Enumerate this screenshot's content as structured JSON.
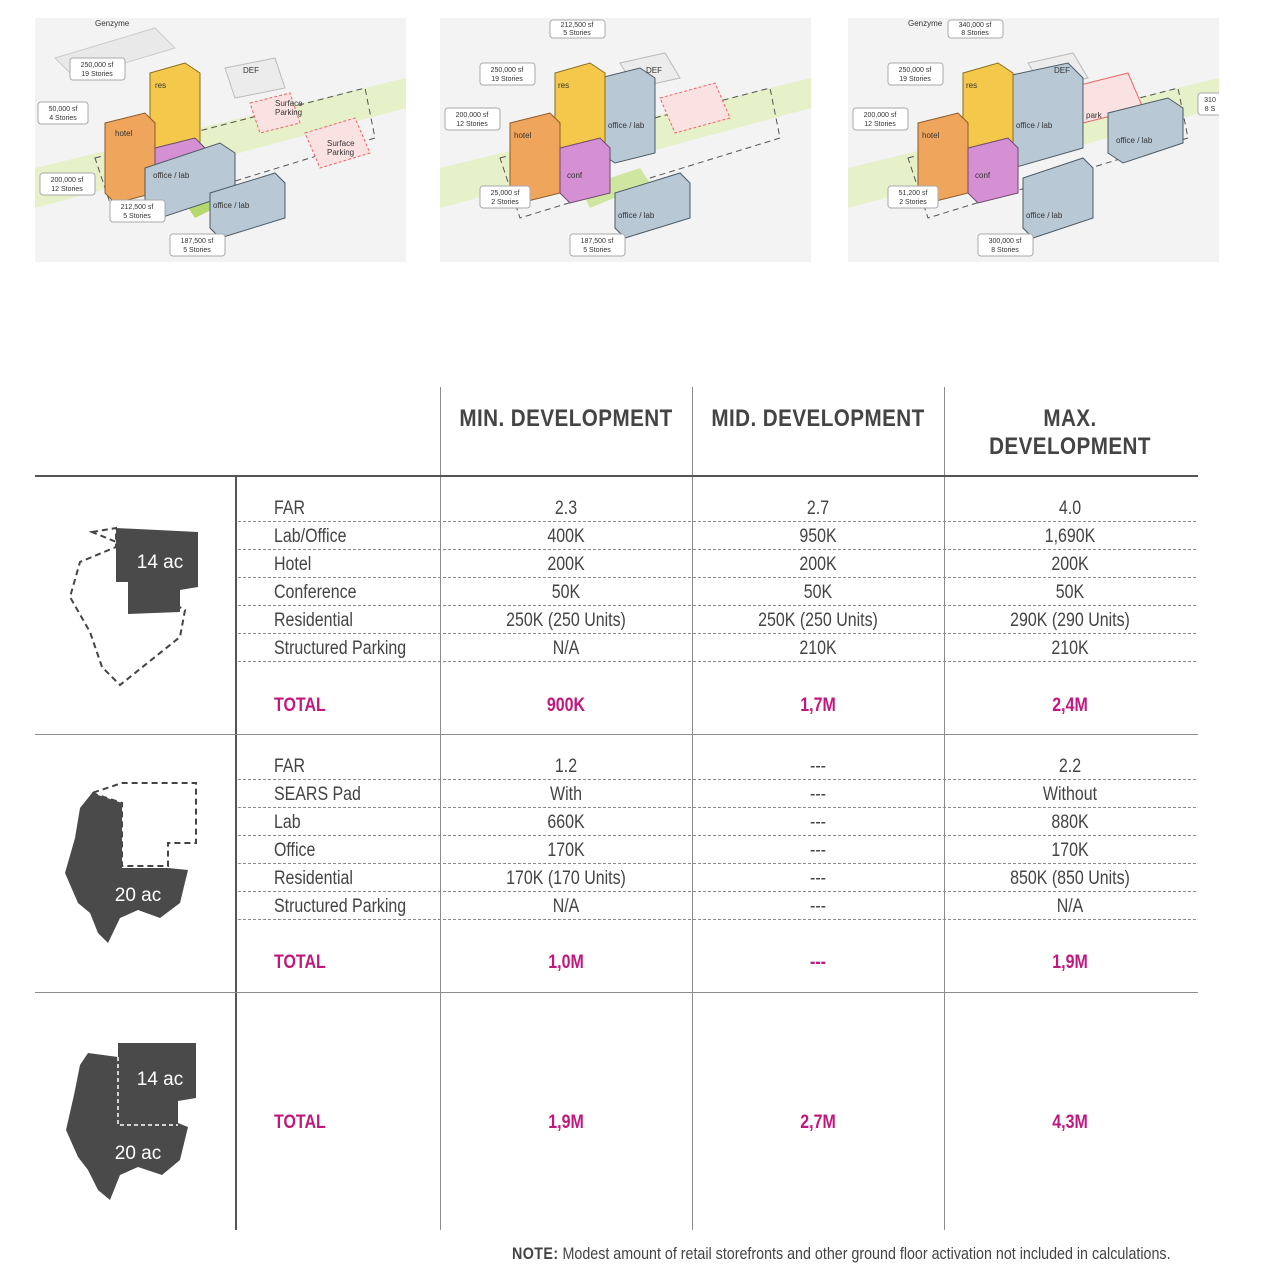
{
  "illustrations": [
    {
      "genzyme": "Genzyme",
      "def": "DEF",
      "use_labels": [
        "res",
        "hotel",
        "office / lab",
        "office / lab"
      ],
      "parking": [
        "Surface\nParking",
        "Surface\nParking"
      ],
      "tags": [
        {
          "sf": "250,000 sf",
          "stories": "19 Stories"
        },
        {
          "sf": "50,000 sf",
          "stories": "4 Stories"
        },
        {
          "sf": "200,000 sf",
          "stories": "12 Stories"
        },
        {
          "sf": "212,500 sf",
          "stories": "5 Stories"
        },
        {
          "sf": "187,500 sf",
          "stories": "5 Stories"
        }
      ]
    },
    {
      "def": "DEF",
      "use_labels": [
        "res",
        "hotel",
        "conf",
        "office / lab",
        "office / lab"
      ],
      "tags": [
        {
          "sf": "212,500 sf",
          "stories": "5 Stories"
        },
        {
          "sf": "250,000 sf",
          "stories": "19 Stories"
        },
        {
          "sf": "200,000 sf",
          "stories": "12 Stories"
        },
        {
          "sf": "25,000 sf",
          "stories": "2 Stories"
        },
        {
          "sf": "187,500 sf",
          "stories": "5 Stories"
        }
      ]
    },
    {
      "genzyme": "Genzyme",
      "def": "DEF",
      "use_labels": [
        "res",
        "hotel",
        "conf",
        "office / lab",
        "office / lab",
        "office / lab",
        "park"
      ],
      "tags": [
        {
          "sf": "340,000 sf",
          "stories": "8 Stories"
        },
        {
          "sf": "250,000 sf",
          "stories": "19 Stories"
        },
        {
          "sf": "200,000 sf",
          "stories": "12 Stories"
        },
        {
          "sf": "51,200 sf",
          "stories": "2 Stories"
        },
        {
          "sf": "300,000 sf",
          "stories": "8 Stories"
        },
        {
          "sf": "310",
          "stories": "8 S"
        }
      ]
    }
  ],
  "columns": [
    "MIN. DEVELOPMENT",
    "MID. DEVELOPMENT",
    "MAX. DEVELOPMENT"
  ],
  "sections": [
    {
      "site_label": "14 ac",
      "rows": [
        {
          "label": "FAR",
          "values": [
            "2.3",
            "2.7",
            "4.0"
          ]
        },
        {
          "label": "Lab/Office",
          "values": [
            "400K",
            "950K",
            "1,690K"
          ]
        },
        {
          "label": "Hotel",
          "values": [
            "200K",
            "200K",
            "200K"
          ]
        },
        {
          "label": "Conference",
          "values": [
            "50K",
            "50K",
            "50K"
          ]
        },
        {
          "label": "Residential",
          "values": [
            "250K (250 Units)",
            "250K (250 Units)",
            "290K (290 Units)"
          ]
        },
        {
          "label": "Structured Parking",
          "values": [
            "N/A",
            "210K",
            "210K"
          ]
        }
      ],
      "total": {
        "label": "TOTAL",
        "values": [
          "900K",
          "1,7M",
          "2,4M"
        ]
      }
    },
    {
      "site_label": "20 ac",
      "rows": [
        {
          "label": "FAR",
          "values": [
            "1.2",
            "---",
            "2.2"
          ]
        },
        {
          "label": "SEARS Pad",
          "values": [
            "With",
            "---",
            "Without"
          ]
        },
        {
          "label": "Lab",
          "values": [
            "660K",
            "---",
            "880K"
          ]
        },
        {
          "label": "Office",
          "values": [
            "170K",
            "---",
            "170K"
          ]
        },
        {
          "label": "Residential",
          "values": [
            "170K (170 Units)",
            "---",
            "850K (850 Units)"
          ]
        },
        {
          "label": "Structured Parking",
          "values": [
            "N/A",
            "---",
            "N/A"
          ]
        }
      ],
      "total": {
        "label": "TOTAL",
        "values": [
          "1,0M",
          "---",
          "1,9M"
        ]
      }
    },
    {
      "site_labels": [
        "14 ac",
        "20 ac"
      ],
      "total": {
        "label": "TOTAL",
        "values": [
          "1,9M",
          "2,7M",
          "4,3M"
        ]
      }
    }
  ],
  "note": {
    "prefix": "NOTE:",
    "text": " Modest amount of retail storefronts and other ground floor activation not included in calculations."
  },
  "colors": {
    "accent": "#c2187e",
    "site_fill": "#4a4a4a",
    "hotel": "#f0a55c",
    "res": "#f4c84a",
    "office": "#b8c8d4",
    "conf": "#d58fd3",
    "green": "#b5d96a",
    "parking": "#e8686a"
  }
}
